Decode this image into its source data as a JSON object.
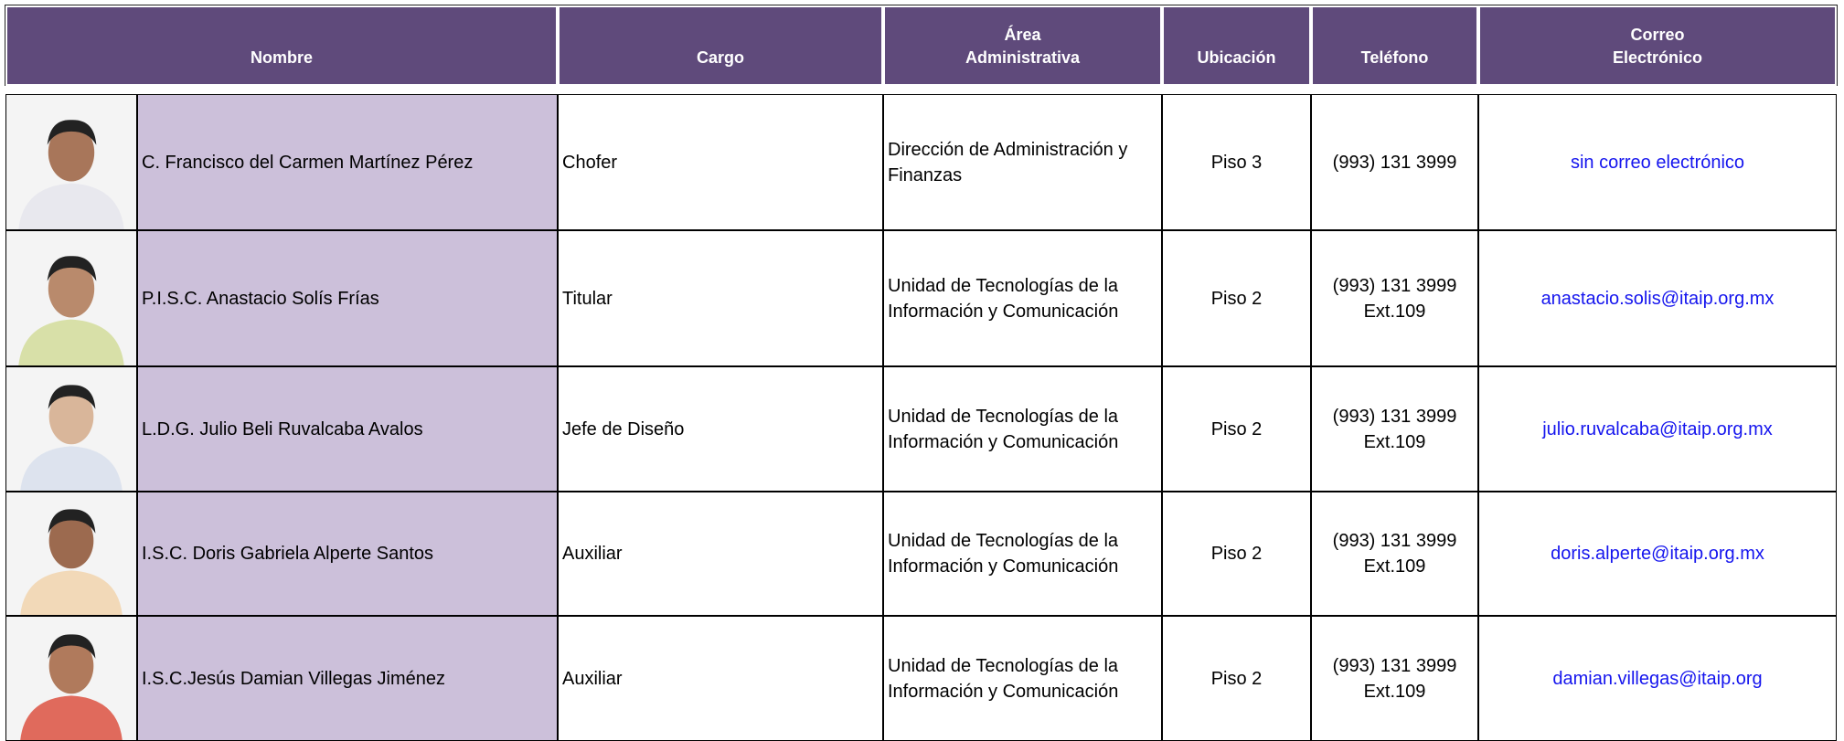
{
  "table": {
    "header": [
      [
        "Nombre"
      ],
      [
        "Cargo"
      ],
      [
        "Área",
        "Administrativa"
      ],
      [
        "Ubicación"
      ],
      [
        "Teléfono"
      ],
      [
        "Correo",
        "Electrónico"
      ]
    ],
    "rows": [
      {
        "name": "C. Francisco del Carmen Martínez Pérez",
        "cargo": "Chofer",
        "area": "Dirección de Administración y Finanzas",
        "ubicacion": "Piso 3",
        "telefono": [
          "(993) 131 3999"
        ],
        "correo": "sin correo electrónico"
      },
      {
        "name": "P.I.S.C. Anastacio Solís Frías",
        "cargo": "Titular",
        "area": "Unidad de Tecnologías de la Información y Comunicación",
        "ubicacion": "Piso 2",
        "telefono": [
          "(993) 131 3999",
          "Ext.109"
        ],
        "correo": "anastacio.solis@itaip.org.mx"
      },
      {
        "name": "L.D.G. Julio Beli Ruvalcaba Avalos",
        "cargo": "Jefe de Diseño",
        "area": "Unidad de Tecnologías de la Información y Comunicación",
        "ubicacion": "Piso 2",
        "telefono": [
          "(993) 131 3999",
          "Ext.109"
        ],
        "correo": "julio.ruvalcaba@itaip.org.mx"
      },
      {
        "name": "I.S.C. Doris Gabriela Alperte Santos",
        "cargo": "Auxiliar",
        "area": "Unidad de Tecnologías de la Información y Comunicación",
        "ubicacion": "Piso 2",
        "telefono": [
          "(993) 131 3999",
          "Ext.109"
        ],
        "correo": "doris.alperte@itaip.org.mx"
      },
      {
        "name": "I.S.C.Jesús Damian Villegas Jiménez",
        "cargo": "Auxiliar",
        "area": "Unidad de Tecnologías de la Información y Comunicación",
        "ubicacion": "Piso 2",
        "telefono": [
          "(993) 131 3999",
          "Ext.109"
        ],
        "correo": "damian.villegas@itaip.org"
      }
    ]
  }
}
